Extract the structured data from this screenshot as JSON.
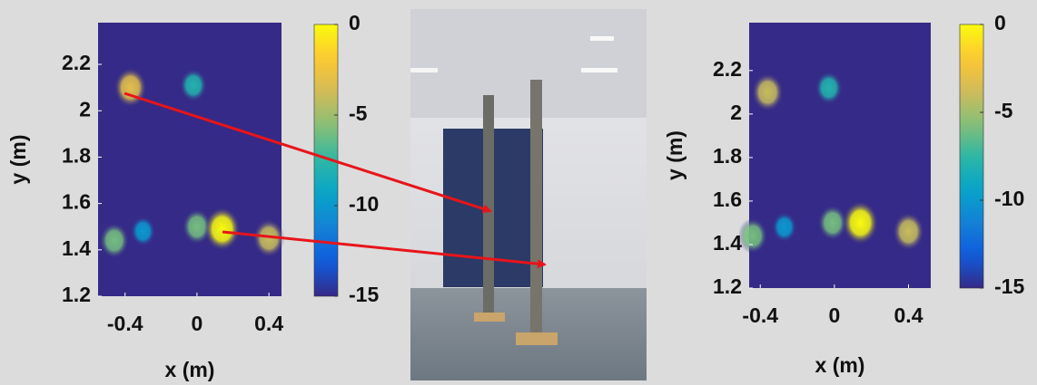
{
  "chart_data": [
    {
      "type": "heatmap",
      "colormap": "parula",
      "xlabel": "x (m)",
      "ylabel": "y (m)",
      "xlim": [
        -0.55,
        0.47
      ],
      "ylim": [
        1.2,
        2.38
      ],
      "xticks": [
        -0.4,
        0,
        0.4
      ],
      "yticks": [
        1.2,
        1.4,
        1.6,
        1.8,
        2,
        2.2
      ],
      "clim": [
        -15,
        0
      ],
      "cticks": [
        0,
        -5,
        -10,
        -15
      ],
      "blobs": [
        {
          "x": -0.37,
          "y": 2.1,
          "value": -3
        },
        {
          "x": -0.02,
          "y": 2.11,
          "value": -8
        },
        {
          "x": -0.46,
          "y": 1.44,
          "value": -6
        },
        {
          "x": -0.3,
          "y": 1.48,
          "value": -10
        },
        {
          "x": 0,
          "y": 1.5,
          "value": -6
        },
        {
          "x": 0.14,
          "y": 1.49,
          "value": 0
        },
        {
          "x": 0.4,
          "y": 1.45,
          "value": -4
        }
      ]
    },
    {
      "type": "heatmap",
      "colormap": "parula",
      "xlabel": "x (m)",
      "ylabel": "y (m)",
      "xlim": [
        -0.46,
        0.52
      ],
      "ylim": [
        1.2,
        2.42
      ],
      "xticks": [
        -0.4,
        0,
        0.4
      ],
      "yticks": [
        1.2,
        1.4,
        1.6,
        1.8,
        2,
        2.2
      ],
      "clim": [
        -15,
        0
      ],
      "cticks": [
        0,
        -5,
        -10,
        -15
      ],
      "blobs": [
        {
          "x": -0.36,
          "y": 2.1,
          "value": -4
        },
        {
          "x": -0.03,
          "y": 2.12,
          "value": -8
        },
        {
          "x": -0.44,
          "y": 1.44,
          "value": -6
        },
        {
          "x": -0.27,
          "y": 1.48,
          "value": -10
        },
        {
          "x": -0.01,
          "y": 1.5,
          "value": -6
        },
        {
          "x": 0.14,
          "y": 1.5,
          "value": 0
        },
        {
          "x": 0.4,
          "y": 1.46,
          "value": -4
        }
      ]
    }
  ]
}
